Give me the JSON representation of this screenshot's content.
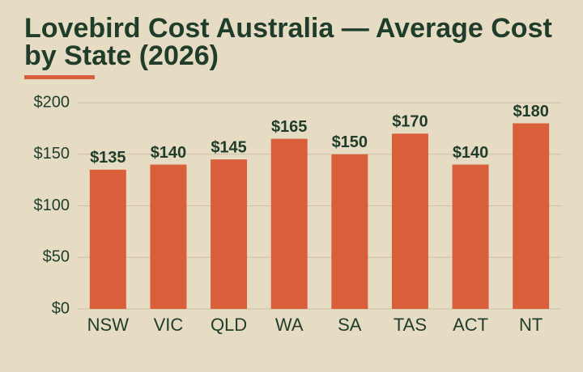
{
  "chart_data": {
    "type": "bar",
    "title": "Lovebird Cost Australia — Average Cost by State (2026)",
    "categories": [
      "NSW",
      "VIC",
      "QLD",
      "WA",
      "SA",
      "TAS",
      "ACT",
      "NT"
    ],
    "values": [
      135,
      140,
      145,
      165,
      150,
      170,
      140,
      180
    ],
    "value_labels": [
      "$135",
      "$140",
      "$145",
      "$165",
      "$150",
      "$170",
      "$140",
      "$180"
    ],
    "color": "#d95f3b",
    "ylim": [
      0,
      200
    ],
    "yticks": [
      {
        "value": 0,
        "label": "$0"
      },
      {
        "value": 50,
        "label": "$50"
      },
      {
        "value": 100,
        "label": "$100"
      },
      {
        "value": 150,
        "label": "$150"
      },
      {
        "value": 200,
        "label": "$200"
      }
    ],
    "grid": true
  }
}
